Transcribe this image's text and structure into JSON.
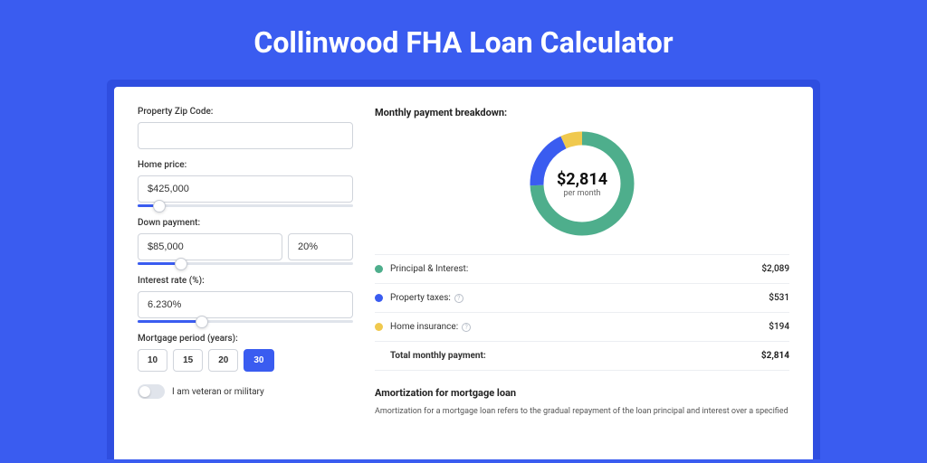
{
  "colors": {
    "page_bg": "#3a5cf0",
    "outer_panel_bg": "#2f4ee0",
    "panel_bg": "#ffffff",
    "input_border": "#d0d4db",
    "slider_track": "#e0e4eb",
    "slider_fill": "#3a5cf0",
    "text": "#333333",
    "divider": "#eceef2"
  },
  "header": {
    "title": "Collinwood FHA Loan Calculator"
  },
  "form": {
    "zip": {
      "label": "Property Zip Code:",
      "value": ""
    },
    "home_price": {
      "label": "Home price:",
      "value": "$425,000",
      "slider_pct": 10
    },
    "down_payment": {
      "label": "Down payment:",
      "amount": "$85,000",
      "pct": "20%",
      "slider_pct": 20
    },
    "interest_rate": {
      "label": "Interest rate (%):",
      "value": "6.230%",
      "slider_pct": 30
    },
    "period": {
      "label": "Mortgage period (years):",
      "options": [
        "10",
        "15",
        "20",
        "30"
      ],
      "selected": "30"
    },
    "veteran": {
      "label": "I am veteran or military",
      "checked": false
    }
  },
  "breakdown": {
    "title": "Monthly payment breakdown:",
    "donut": {
      "center_amount": "$2,814",
      "center_sub": "per month",
      "stroke_width": 15,
      "radius": 50,
      "segments": [
        {
          "key": "pi",
          "value": 2089,
          "color": "#4eae8c"
        },
        {
          "key": "tax",
          "value": 531,
          "color": "#3a5cf0"
        },
        {
          "key": "ins",
          "value": 194,
          "color": "#f0c94e"
        }
      ],
      "total": 2814
    },
    "items": [
      {
        "dot_color": "#4eae8c",
        "label": "Principal & Interest:",
        "info": false,
        "value": "$2,089"
      },
      {
        "dot_color": "#3a5cf0",
        "label": "Property taxes:",
        "info": true,
        "value": "$531"
      },
      {
        "dot_color": "#f0c94e",
        "label": "Home insurance:",
        "info": true,
        "value": "$194"
      }
    ],
    "total": {
      "label": "Total monthly payment:",
      "value": "$2,814"
    }
  },
  "amortization": {
    "title": "Amortization for mortgage loan",
    "body": "Amortization for a mortgage loan refers to the gradual repayment of the loan principal and interest over a specified"
  }
}
